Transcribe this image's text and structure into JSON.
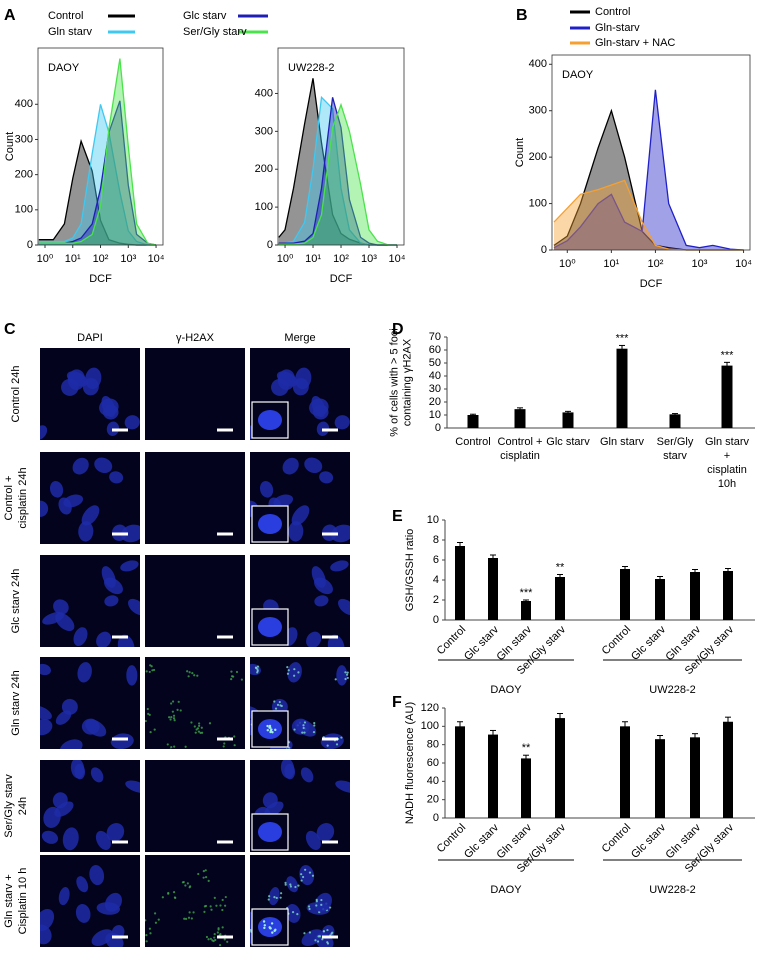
{
  "chart_data": [
    {
      "type": "area",
      "panel": "A",
      "title": "DAOY",
      "xlabel": "DCF",
      "ylabel": "Count",
      "log_x": true,
      "legend": true,
      "x": [
        0.6,
        1,
        2,
        5,
        10,
        20,
        50,
        100,
        200,
        500,
        1000,
        2000,
        5000,
        10000
      ],
      "xlim": [
        0.56,
        17800
      ],
      "xticks": [
        {
          "value": 1,
          "label": "10⁰"
        },
        {
          "value": 10,
          "label": "10¹"
        },
        {
          "value": 100,
          "label": "10²"
        },
        {
          "value": 1000,
          "label": "10³"
        },
        {
          "value": 10000,
          "label": "10⁴"
        }
      ],
      "ylim": [
        0,
        560
      ],
      "yticks": [
        0,
        100,
        200,
        300,
        400
      ],
      "series": [
        {
          "name": "Control",
          "color": "#000000",
          "values": [
            15,
            15,
            15,
            60,
            190,
            295,
            210,
            70,
            15,
            5,
            2,
            0,
            0,
            0
          ]
        },
        {
          "name": "Gln starv",
          "color": "#3fc8f0",
          "values": [
            10,
            10,
            10,
            10,
            20,
            60,
            260,
            400,
            320,
            150,
            40,
            10,
            0,
            0
          ]
        },
        {
          "name": "Glc starv",
          "color": "#1f1fb4",
          "values": [
            5,
            5,
            5,
            5,
            10,
            20,
            60,
            160,
            320,
            410,
            170,
            30,
            5,
            0
          ]
        },
        {
          "name": "Ser/Gly starv",
          "color": "#4be34b",
          "values": [
            5,
            5,
            5,
            5,
            5,
            10,
            30,
            110,
            330,
            530,
            280,
            60,
            5,
            0
          ]
        }
      ]
    },
    {
      "type": "area",
      "title": "UW228-2",
      "xlabel": "DCF",
      "log_x": true,
      "legend": false,
      "x": [
        0.6,
        1,
        2,
        5,
        10,
        20,
        50,
        100,
        200,
        500,
        1000,
        2000,
        5000,
        10000
      ],
      "xlim": [
        0.56,
        17800
      ],
      "xticks": [
        {
          "value": 1,
          "label": "10⁰"
        },
        {
          "value": 10,
          "label": "10¹"
        },
        {
          "value": 100,
          "label": "10²"
        },
        {
          "value": 1000,
          "label": "10³"
        },
        {
          "value": 10000,
          "label": "10⁴"
        }
      ],
      "ylim": [
        0,
        520
      ],
      "yticks": [
        0,
        100,
        200,
        300,
        400
      ],
      "series": [
        {
          "name": "Control",
          "color": "#000000",
          "values": [
            20,
            40,
            150,
            320,
            440,
            270,
            80,
            30,
            15,
            5,
            0,
            0,
            0,
            0
          ]
        },
        {
          "name": "Gln starv",
          "color": "#3fc8f0",
          "values": [
            5,
            5,
            10,
            60,
            200,
            390,
            360,
            150,
            40,
            5,
            0,
            0,
            0,
            0
          ]
        },
        {
          "name": "Glc starv",
          "color": "#1f1fb4",
          "values": [
            5,
            5,
            5,
            10,
            30,
            150,
            390,
            310,
            120,
            20,
            5,
            0,
            0,
            0
          ]
        },
        {
          "name": "Ser/Gly starv",
          "color": "#4be34b",
          "values": [
            2,
            2,
            2,
            5,
            20,
            80,
            310,
            370,
            300,
            160,
            40,
            10,
            0,
            0
          ]
        }
      ]
    },
    {
      "type": "area",
      "panel": "B",
      "title": "DAOY",
      "xlabel": "DCF",
      "ylabel": "Count",
      "log_x": true,
      "legend": true,
      "x": [
        0.5,
        1,
        2,
        5,
        10,
        20,
        50,
        100,
        200,
        500,
        1000,
        2000,
        5000,
        10000
      ],
      "xlim": [
        0.45,
        14000
      ],
      "xticks": [
        {
          "value": 1,
          "label": "10⁰"
        },
        {
          "value": 10,
          "label": "10¹"
        },
        {
          "value": 100,
          "label": "10²"
        },
        {
          "value": 1000,
          "label": "10³"
        },
        {
          "value": 10000,
          "label": "10⁴"
        }
      ],
      "ylim": [
        0,
        420
      ],
      "yticks": [
        0,
        100,
        200,
        300,
        400
      ],
      "series": [
        {
          "name": "Control",
          "color": "#000000",
          "values": [
            10,
            30,
            100,
            220,
            300,
            200,
            40,
            10,
            5,
            0,
            0,
            0,
            0,
            0
          ]
        },
        {
          "name": "Gln-starv",
          "color": "#2020c8",
          "values": [
            5,
            20,
            50,
            100,
            120,
            60,
            40,
            345,
            100,
            10,
            5,
            10,
            2,
            0
          ]
        },
        {
          "name": "Gln-starv + NAC",
          "color": "#f5a030",
          "values": [
            60,
            90,
            120,
            130,
            140,
            150,
            60,
            10,
            2,
            0,
            0,
            0,
            0,
            0
          ]
        }
      ]
    },
    {
      "type": "bar",
      "panel": "D",
      "ylabel": [
        "% of cells with > 5 foci",
        "containing γH2AX"
      ],
      "categories": [
        [
          "Control"
        ],
        [
          "Control +",
          "cisplatin"
        ],
        [
          "Glc starv"
        ],
        [
          "Gln starv"
        ],
        [
          "Ser/Gly",
          "starv"
        ],
        [
          "Gln starv",
          "+",
          "cisplatin",
          "10h"
        ]
      ],
      "values": [
        10,
        14.5,
        12,
        61,
        10.5,
        48
      ],
      "errors": [
        0.6,
        1,
        0.8,
        2.5,
        0.6,
        2.5
      ],
      "significance": [
        null,
        null,
        null,
        "***",
        null,
        "***"
      ],
      "color": "#000000",
      "ylim": [
        0,
        70
      ],
      "yticks": [
        0,
        10,
        20,
        30,
        40,
        50,
        60,
        70
      ]
    },
    {
      "type": "bar",
      "panel": "E",
      "ylabel": [
        "GSH/GSSH ratio"
      ],
      "categories": [
        "Control",
        "Glc starv",
        "Gln starv",
        "Ser/Gly starv",
        "Control",
        "Glc starv",
        "Gln starv",
        "Ser/Gly starv"
      ],
      "groups": [
        "DAOY",
        "UW228-2"
      ],
      "values": [
        7.4,
        6.2,
        1.9,
        4.3,
        5.1,
        4.1,
        4.8,
        4.9
      ],
      "errors": [
        0.35,
        0.3,
        0.1,
        0.25,
        0.25,
        0.25,
        0.25,
        0.25
      ],
      "significance": [
        null,
        null,
        "***",
        "**",
        null,
        null,
        null,
        null
      ],
      "color": "#000000",
      "ylim": [
        0,
        10
      ],
      "yticks": [
        0,
        2,
        4,
        6,
        8,
        10
      ]
    },
    {
      "type": "bar",
      "panel": "F",
      "ylabel": [
        "NADH fluorescence (AU)"
      ],
      "categories": [
        "Control",
        "Glc starv",
        "Gln starv",
        "Ser/Gly starv",
        "Control",
        "Glc starv",
        "Gln starv",
        "Ser/Gly starv"
      ],
      "groups": [
        "DAOY",
        "UW228-2"
      ],
      "values": [
        100,
        91,
        65,
        109,
        100,
        86,
        88,
        105
      ],
      "errors": [
        5,
        4.5,
        3.5,
        5,
        5,
        4,
        4,
        5
      ],
      "significance": [
        null,
        null,
        "**",
        null,
        null,
        null,
        null,
        null
      ],
      "color": "#000000",
      "ylim": [
        0,
        120
      ],
      "yticks": [
        0,
        20,
        40,
        60,
        80,
        100,
        120
      ]
    }
  ],
  "panel_c": {
    "label": "C",
    "columns": [
      "DAPI",
      "γ-H2AX",
      "Merge"
    ],
    "rows": [
      [
        "Control 24h"
      ],
      [
        "Control +",
        "cisplatin 24h"
      ],
      [
        "Glc starv 24h"
      ],
      [
        "Gln starv 24h"
      ],
      [
        "Ser/Gly starv",
        "24h"
      ],
      [
        "Gln starv +",
        "Cisplatin 10 h"
      ]
    ]
  }
}
